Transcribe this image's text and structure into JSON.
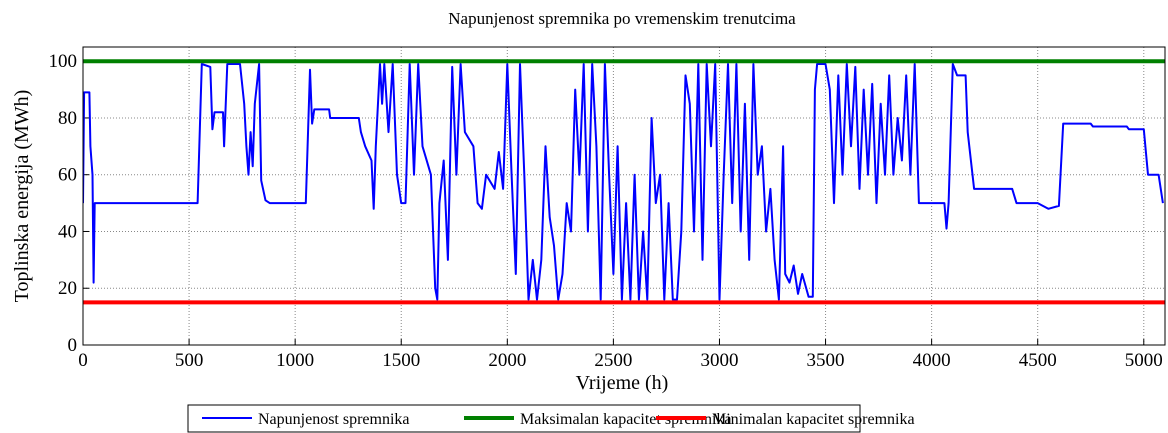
{
  "chart_data": {
    "type": "line",
    "title": "Napunjenost spremnika po vremenskim trenutcima",
    "xlabel": "Vrijeme (h)",
    "ylabel": "Toplinska energija (MWh)",
    "xlim": [
      0,
      5100
    ],
    "ylim": [
      0,
      105
    ],
    "xticks": [
      0,
      500,
      1000,
      1500,
      2000,
      2500,
      3000,
      3500,
      4000,
      4500,
      5000
    ],
    "yticks": [
      0,
      20,
      40,
      60,
      80,
      100
    ],
    "grid": true,
    "legend": "bottom",
    "series": [
      {
        "name": "Napunjenost spremnika",
        "color": "#0000ff",
        "x": [
          0,
          5,
          30,
          35,
          45,
          50,
          55,
          540,
          560,
          600,
          610,
          620,
          660,
          665,
          680,
          740,
          760,
          770,
          780,
          790,
          800,
          810,
          830,
          840,
          860,
          880,
          1050,
          1070,
          1080,
          1090,
          1160,
          1165,
          1300,
          1310,
          1330,
          1360,
          1370,
          1380,
          1400,
          1410,
          1420,
          1440,
          1460,
          1480,
          1500,
          1520,
          1540,
          1560,
          1580,
          1600,
          1640,
          1660,
          1670,
          1680,
          1700,
          1720,
          1740,
          1760,
          1780,
          1800,
          1840,
          1860,
          1880,
          1900,
          1940,
          1960,
          1980,
          2000,
          2020,
          2040,
          2060,
          2080,
          2100,
          2120,
          2140,
          2160,
          2180,
          2200,
          2220,
          2240,
          2260,
          2280,
          2300,
          2320,
          2340,
          2360,
          2380,
          2400,
          2420,
          2440,
          2460,
          2480,
          2500,
          2520,
          2540,
          2560,
          2580,
          2600,
          2620,
          2640,
          2660,
          2680,
          2700,
          2720,
          2740,
          2760,
          2780,
          2800,
          2820,
          2840,
          2860,
          2880,
          2900,
          2920,
          2940,
          2960,
          2980,
          3000,
          3020,
          3040,
          3060,
          3080,
          3100,
          3120,
          3140,
          3160,
          3180,
          3200,
          3220,
          3240,
          3260,
          3280,
          3300,
          3310,
          3330,
          3350,
          3370,
          3390,
          3420,
          3440,
          3450,
          3460,
          3500,
          3520,
          3540,
          3560,
          3580,
          3600,
          3620,
          3640,
          3660,
          3680,
          3700,
          3720,
          3740,
          3760,
          3780,
          3800,
          3820,
          3840,
          3860,
          3880,
          3900,
          3920,
          3940,
          3960,
          4060,
          4070,
          4080,
          4100,
          4120,
          4160,
          4170,
          4200,
          4300,
          4380,
          4400,
          4500,
          4550,
          4600,
          4620,
          4750,
          4760,
          4920,
          4930,
          5000,
          5020,
          5070,
          5090
        ],
        "values": [
          50,
          89,
          89,
          70,
          60,
          22,
          50,
          50,
          99,
          98,
          76,
          82,
          82,
          70,
          99,
          99,
          85,
          70,
          60,
          75,
          63,
          85,
          99,
          58,
          51,
          50,
          50,
          97,
          78,
          83,
          83,
          80,
          80,
          75,
          70,
          65,
          48,
          70,
          99,
          85,
          99,
          75,
          99,
          60,
          50,
          50,
          99,
          60,
          99,
          70,
          60,
          20,
          16,
          50,
          65,
          30,
          98,
          60,
          99,
          75,
          70,
          50,
          48,
          60,
          55,
          68,
          55,
          99,
          60,
          25,
          99,
          60,
          16,
          30,
          16,
          30,
          70,
          45,
          35,
          16,
          25,
          50,
          40,
          90,
          60,
          99,
          40,
          99,
          70,
          16,
          99,
          60,
          25,
          70,
          16,
          50,
          16,
          60,
          16,
          40,
          16,
          80,
          50,
          60,
          16,
          50,
          16,
          16,
          40,
          95,
          85,
          40,
          99,
          30,
          99,
          70,
          99,
          16,
          60,
          99,
          50,
          99,
          40,
          85,
          30,
          99,
          60,
          70,
          40,
          55,
          30,
          16,
          70,
          25,
          22,
          28,
          18,
          25,
          17,
          17,
          90,
          99,
          99,
          90,
          50,
          95,
          60,
          99,
          70,
          98,
          55,
          90,
          60,
          92,
          50,
          85,
          60,
          95,
          60,
          80,
          65,
          95,
          60,
          99,
          50,
          50,
          50,
          41,
          50,
          99,
          95,
          95,
          75,
          55,
          55,
          55,
          50,
          50,
          48,
          49,
          78,
          78,
          77,
          77,
          76,
          76,
          60,
          60,
          50
        ]
      },
      {
        "name": "Maksimalan kapacitet spremnika",
        "color": "#008000",
        "x": [
          0,
          5100
        ],
        "values": [
          100,
          100
        ]
      },
      {
        "name": "Minimalan kapacitet spremnika",
        "color": "#ff0000",
        "x": [
          0,
          5100
        ],
        "values": [
          15,
          15
        ]
      }
    ]
  }
}
